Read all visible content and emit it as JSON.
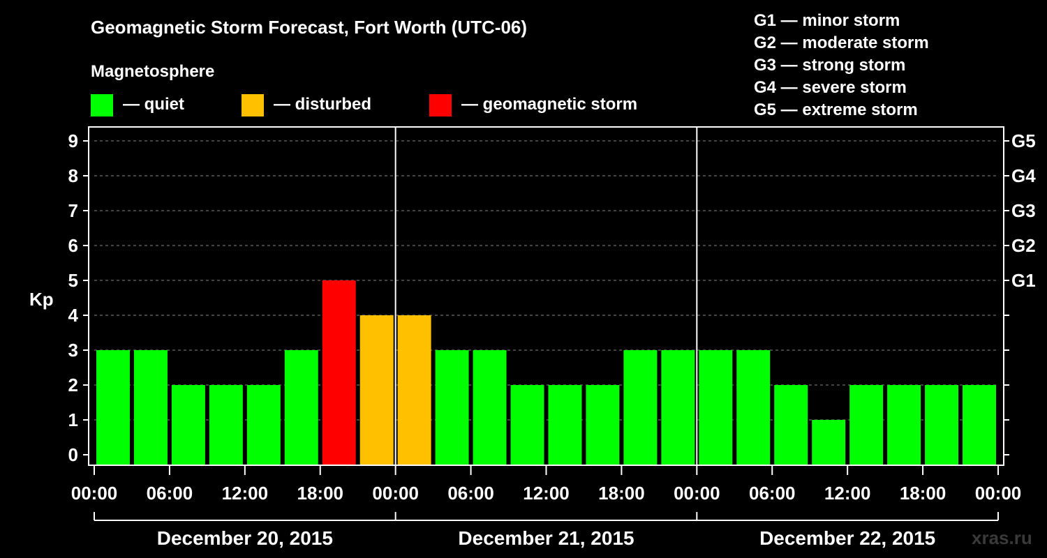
{
  "chart_data": {
    "type": "bar",
    "title": "Geomagnetic Storm Forecast, Fort Worth (UTC-06)",
    "ylabel": "Kp",
    "ylim": [
      0,
      9
    ],
    "yticks": [
      "0",
      "1",
      "2",
      "3",
      "4",
      "5",
      "6",
      "7",
      "8",
      "9"
    ],
    "right_ticks": [
      {
        "kp": 5,
        "label": "G1"
      },
      {
        "kp": 6,
        "label": "G2"
      },
      {
        "kp": 7,
        "label": "G3"
      },
      {
        "kp": 8,
        "label": "G4"
      },
      {
        "kp": 9,
        "label": "G5"
      }
    ],
    "xticks": [
      "00:00",
      "06:00",
      "12:00",
      "18:00",
      "00:00",
      "06:00",
      "12:00",
      "18:00",
      "00:00",
      "06:00",
      "12:00",
      "18:00",
      "00:00"
    ],
    "days": [
      "December 20, 2015",
      "December 21, 2015",
      "December 22, 2015"
    ],
    "bar_interval_hours": 3,
    "values": [
      3,
      3,
      2,
      2,
      2,
      3,
      5,
      4,
      4,
      3,
      3,
      2,
      2,
      2,
      3,
      3,
      3,
      3,
      2,
      1,
      2,
      2,
      2,
      2
    ],
    "levels": [
      "quiet",
      "quiet",
      "quiet",
      "quiet",
      "quiet",
      "quiet",
      "storm",
      "disturbed",
      "disturbed",
      "quiet",
      "quiet",
      "quiet",
      "quiet",
      "quiet",
      "quiet",
      "quiet",
      "quiet",
      "quiet",
      "quiet",
      "quiet",
      "quiet",
      "quiet",
      "quiet",
      "quiet"
    ],
    "legend": {
      "heading": "Magnetosphere",
      "items": [
        {
          "key": "quiet",
          "label": "— quiet",
          "color": "#00ff00"
        },
        {
          "key": "disturbed",
          "label": "— disturbed",
          "color": "#ffc000"
        },
        {
          "key": "storm",
          "label": "— geomagnetic storm",
          "color": "#ff0000"
        }
      ]
    },
    "scale_legend": [
      "G1 — minor storm",
      "G2 — moderate storm",
      "G3 — strong storm",
      "G4 — severe storm",
      "G5 — extreme storm"
    ]
  },
  "watermark": "xras.ru",
  "colors": {
    "background": "#000000",
    "axis": "#ffffff",
    "grid": "#888888"
  }
}
